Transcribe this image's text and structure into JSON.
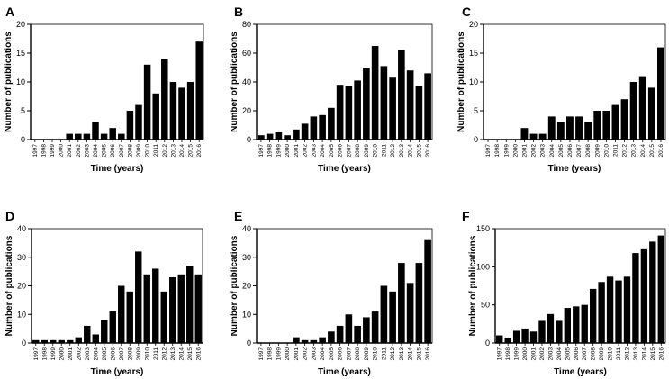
{
  "chart_data": [
    {
      "panel": "A",
      "type": "bar",
      "xlabel": "Time (years)",
      "ylabel": "Number of publications",
      "ylim": [
        0,
        20
      ],
      "yticks": [
        0,
        5,
        10,
        15,
        20
      ],
      "categories": [
        "1997",
        "1998",
        "1999",
        "2000",
        "2001",
        "2002",
        "2003",
        "2004",
        "2005",
        "2006",
        "2007",
        "2008",
        "2009",
        "2010",
        "2011",
        "2012",
        "2013",
        "2014",
        "2015",
        "2016"
      ],
      "values": [
        0,
        0,
        0,
        0,
        1,
        1,
        1,
        3,
        1,
        2,
        1,
        5,
        6,
        13,
        8,
        14,
        10,
        9,
        10,
        17
      ]
    },
    {
      "panel": "B",
      "type": "bar",
      "xlabel": "Time (years)",
      "ylabel": "Number of publications",
      "ylim": [
        0,
        80
      ],
      "yticks": [
        0,
        20,
        40,
        60,
        80
      ],
      "categories": [
        "1997",
        "1998",
        "1999",
        "2000",
        "2001",
        "2002",
        "2003",
        "2004",
        "2005",
        "2006",
        "2007",
        "2008",
        "2009",
        "2010",
        "2011",
        "2012",
        "2013",
        "2014",
        "2015",
        "2016"
      ],
      "values": [
        3,
        4,
        5,
        3,
        7,
        11,
        16,
        17,
        22,
        38,
        37,
        41,
        50,
        65,
        51,
        43,
        62,
        48,
        37,
        46
      ]
    },
    {
      "panel": "C",
      "type": "bar",
      "xlabel": "Time (years)",
      "ylabel": "Number of publications",
      "ylim": [
        0,
        20
      ],
      "yticks": [
        0,
        5,
        10,
        15,
        20
      ],
      "categories": [
        "1997",
        "1998",
        "1999",
        "2000",
        "2001",
        "2002",
        "2003",
        "2004",
        "2005",
        "2006",
        "2007",
        "2008",
        "2009",
        "2010",
        "2011",
        "2012",
        "2013",
        "2014",
        "2015",
        "2016"
      ],
      "values": [
        0,
        0,
        0,
        0,
        2,
        1,
        1,
        4,
        3,
        4,
        4,
        3,
        5,
        5,
        6,
        7,
        10,
        11,
        9,
        16
      ]
    },
    {
      "panel": "D",
      "type": "bar",
      "xlabel": "Time (years)",
      "ylabel": "Number of publications",
      "ylim": [
        0,
        40
      ],
      "yticks": [
        0,
        10,
        20,
        30,
        40
      ],
      "categories": [
        "1997",
        "1998",
        "1999",
        "2000",
        "2001",
        "2002",
        "2003",
        "2004",
        "2005",
        "2006",
        "2007",
        "2008",
        "2009",
        "2010",
        "2011",
        "2012",
        "2013",
        "2014",
        "2015",
        "2016"
      ],
      "values": [
        1,
        1,
        1,
        1,
        1,
        2,
        6,
        3,
        8,
        11,
        20,
        18,
        32,
        24,
        26,
        18,
        23,
        24,
        27,
        24
      ]
    },
    {
      "panel": "E",
      "type": "bar",
      "xlabel": "Time (years)",
      "ylabel": "Number of publications",
      "ylim": [
        0,
        40
      ],
      "yticks": [
        0,
        10,
        20,
        30,
        40
      ],
      "categories": [
        "1997",
        "1998",
        "1999",
        "2000",
        "2001",
        "2002",
        "2003",
        "2004",
        "2005",
        "2006",
        "2007",
        "2008",
        "2009",
        "2010",
        "2011",
        "2012",
        "2013",
        "2014",
        "2015",
        "2016"
      ],
      "values": [
        0,
        0,
        0,
        0,
        2,
        1,
        1,
        2,
        4,
        6,
        10,
        6,
        9,
        11,
        20,
        18,
        28,
        21,
        28,
        36
      ]
    },
    {
      "panel": "F",
      "type": "bar",
      "xlabel": "Time (years)",
      "ylabel": "Number of publications",
      "ylim": [
        0,
        150
      ],
      "yticks": [
        0,
        50,
        100,
        150
      ],
      "categories": [
        "1997",
        "1998",
        "1999",
        "2000",
        "2001",
        "2002",
        "2003",
        "2004",
        "2005",
        "2006",
        "2007",
        "2008",
        "2009",
        "2010",
        "2011",
        "2012",
        "2013",
        "2014",
        "2015",
        "2016"
      ],
      "values": [
        10,
        7,
        16,
        19,
        15,
        29,
        38,
        29,
        46,
        48,
        50,
        71,
        80,
        87,
        82,
        87,
        118,
        123,
        133,
        141
      ]
    }
  ]
}
